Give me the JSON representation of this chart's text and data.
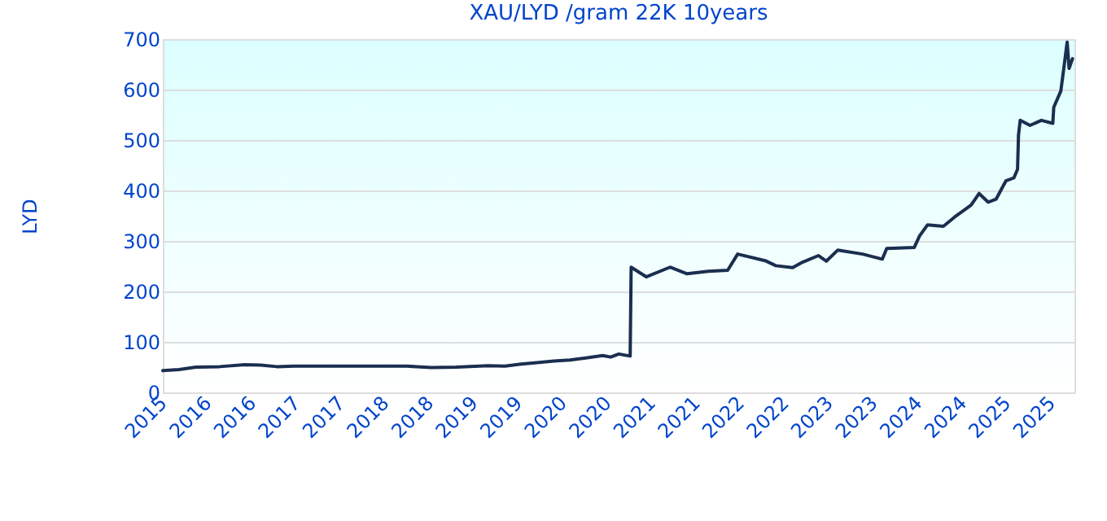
{
  "chart_data": {
    "type": "line",
    "title": "XAU/LYD /gram 22K 10years",
    "ylabel": "LYD",
    "x": [
      "2015-10-19",
      "2015-12-24",
      "2016-03-03",
      "2016-06-09",
      "2016-09-20",
      "2016-11-25",
      "2017-01-30",
      "2017-04-10",
      "2017-08-19",
      "2018-07-20",
      "2018-10-27",
      "2019-02-06",
      "2019-06-18",
      "2019-08-26",
      "2019-10-31",
      "2020-01-04",
      "2020-03-14",
      "2020-05-19",
      "2020-07-23",
      "2020-10-01",
      "2020-11-03",
      "2020-12-06",
      "2021-01-22",
      "2021-01-26",
      "2021-03-29",
      "2021-07-05",
      "2021-09-13",
      "2021-12-09",
      "2022-02-27",
      "2022-04-09",
      "2022-07-31",
      "2022-09-13",
      "2022-11-21",
      "2023-01-01",
      "2023-03-07",
      "2023-04-09",
      "2023-05-26",
      "2023-09-05",
      "2023-11-25",
      "2023-12-13",
      "2024-04-04",
      "2024-04-26",
      "2024-05-29",
      "2024-08-02",
      "2024-09-19",
      "2024-11-24",
      "2024-12-27",
      "2025-02-02",
      "2025-03-07",
      "2025-04-16",
      "2025-05-19",
      "2025-06-03",
      "2025-06-07",
      "2025-06-14",
      "2025-07-24",
      "2025-09-09",
      "2025-10-26",
      "2025-10-30",
      "2025-11-28",
      "2025-12-13",
      "2025-12-24",
      "2026-01-01",
      "2026-01-15"
    ],
    "series": [
      {
        "color": "#1a2e4f",
        "values": [
          43,
          45,
          50,
          51,
          55,
          54,
          51,
          52,
          52,
          52,
          49,
          50,
          53,
          52,
          56,
          59,
          62,
          64,
          68,
          73,
          70,
          76,
          72,
          248,
          229,
          248,
          235,
          240,
          242,
          274,
          261,
          251,
          247,
          258,
          271,
          260,
          282,
          274,
          264,
          285,
          287,
          310,
          332,
          329,
          348,
          371,
          394,
          377,
          383,
          419,
          425,
          442,
          510,
          539,
          529,
          539,
          533,
          565,
          597,
          652,
          694,
          642,
          661
        ]
      }
    ],
    "xlim": [
      "2015-10-19",
      "2026-01-23"
    ],
    "xticks": [
      {
        "value": "2015-10-19",
        "label": "2015"
      },
      {
        "value": "2016-04-19",
        "label": "2016"
      },
      {
        "value": "2016-10-19",
        "label": "2016"
      },
      {
        "value": "2017-04-19",
        "label": "2017"
      },
      {
        "value": "2017-10-19",
        "label": "2017"
      },
      {
        "value": "2018-04-19",
        "label": "2018"
      },
      {
        "value": "2018-10-19",
        "label": "2018"
      },
      {
        "value": "2019-04-19",
        "label": "2019"
      },
      {
        "value": "2019-10-19",
        "label": "2019"
      },
      {
        "value": "2020-04-19",
        "label": "2020"
      },
      {
        "value": "2020-10-19",
        "label": "2020"
      },
      {
        "value": "2021-04-19",
        "label": "2021"
      },
      {
        "value": "2021-10-19",
        "label": "2021"
      },
      {
        "value": "2022-04-19",
        "label": "2022"
      },
      {
        "value": "2022-10-19",
        "label": "2022"
      },
      {
        "value": "2023-04-19",
        "label": "2023"
      },
      {
        "value": "2023-10-19",
        "label": "2023"
      },
      {
        "value": "2024-04-19",
        "label": "2024"
      },
      {
        "value": "2024-10-19",
        "label": "2024"
      },
      {
        "value": "2025-04-19",
        "label": "2025"
      },
      {
        "value": "2025-10-19",
        "label": "2025"
      }
    ],
    "ylim": [
      0,
      700
    ],
    "yticks": [
      0,
      100,
      200,
      300,
      400,
      500,
      600,
      700
    ],
    "grid": "y",
    "marker": "none",
    "line_style": "solid"
  }
}
